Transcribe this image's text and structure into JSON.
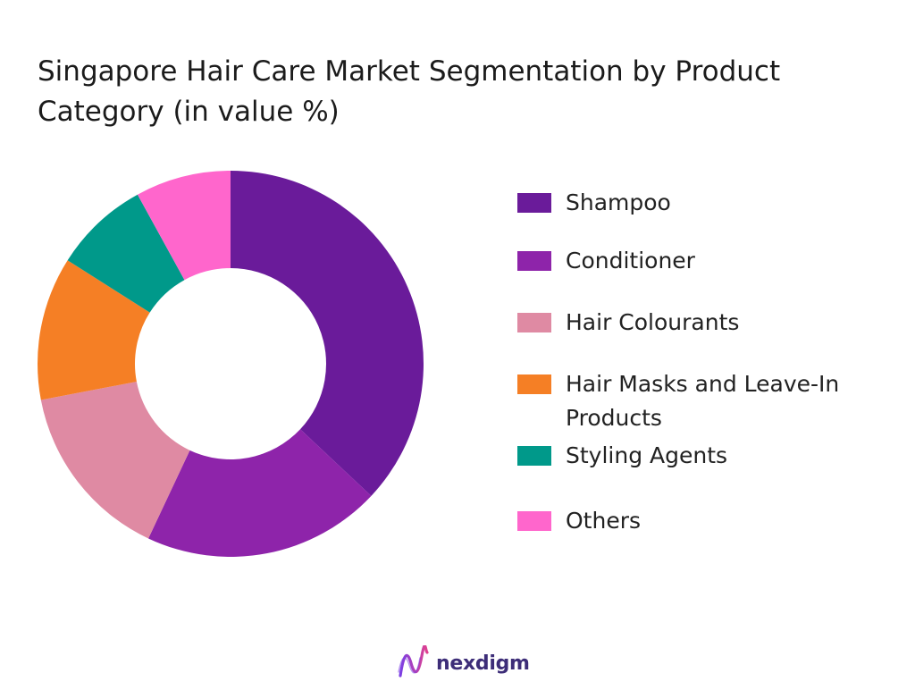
{
  "chart_data": {
    "type": "pie",
    "variant": "donut",
    "title": "Singapore Hair Care Market Segmentation by Product Category (in value %)",
    "unit": "%",
    "categories": [
      "Shampoo",
      "Conditioner",
      "Hair Colourants",
      "Hair Masks and Leave-In Products",
      "Styling Agents",
      "Others"
    ],
    "values": [
      37,
      20,
      15,
      12,
      8,
      8
    ],
    "colors": [
      "#6a1b9a",
      "#8e24aa",
      "#df8aa3",
      "#f57f25",
      "#00998a",
      "#ff66cc"
    ],
    "legend_position": "right"
  },
  "branding": {
    "logo_text": "nexdigm",
    "logo_icon": "nexdigm-wave-icon",
    "logo_gradient": [
      "#7b3fe4",
      "#e0418f"
    ]
  }
}
